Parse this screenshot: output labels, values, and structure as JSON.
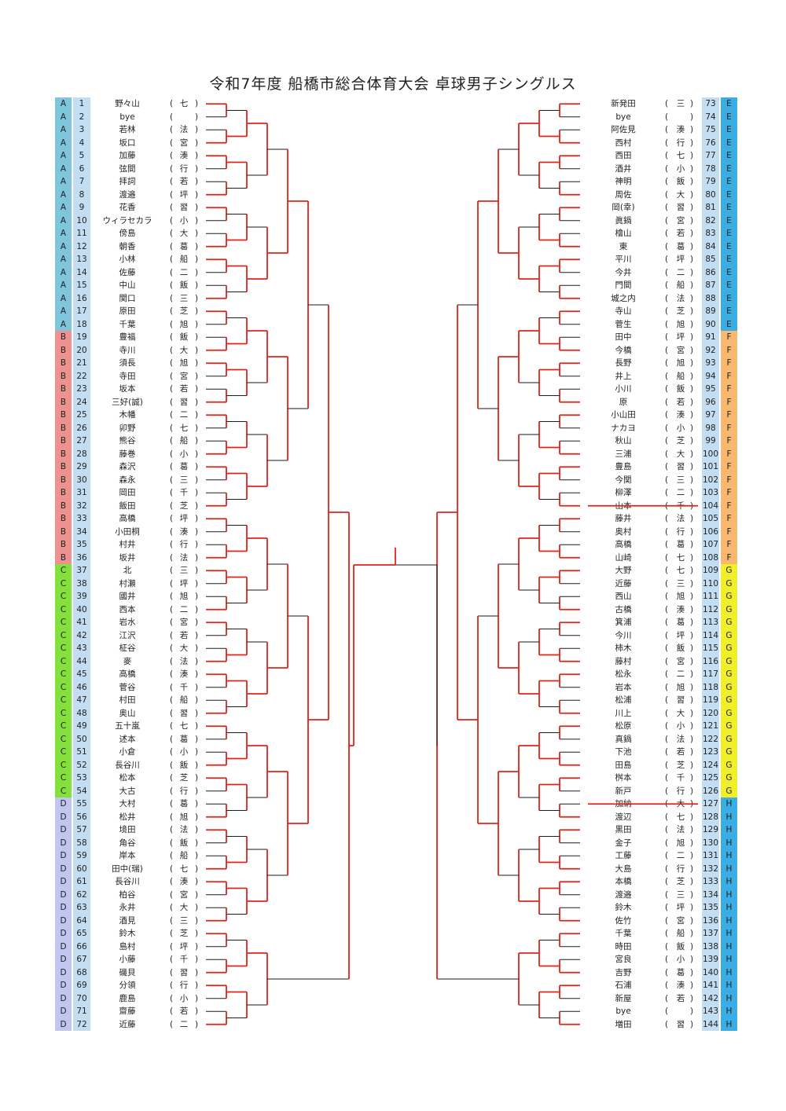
{
  "title": "令和7年度 船橋市総合体育大会 卓球男子シングルス",
  "block_colors": {
    "A": "#7fc6dc",
    "B": "#ee9191",
    "C": "#84e13c",
    "D": "#c1c5ef",
    "E": "#3aaee4",
    "F": "#f8b870",
    "G": "#f1f028",
    "H": "#3aaee4"
  },
  "colors": {
    "winner_line": "#e2231a",
    "bracket_line": "#1a1a1a",
    "number_bg": "#c3def2"
  },
  "left_players": [
    {
      "block": "A",
      "num": "1",
      "name": "野々山",
      "abbr": "七"
    },
    {
      "block": "A",
      "num": "2",
      "name": "bye",
      "abbr": ""
    },
    {
      "block": "A",
      "num": "3",
      "name": "若林",
      "abbr": "法"
    },
    {
      "block": "A",
      "num": "4",
      "name": "坂口",
      "abbr": "宮"
    },
    {
      "block": "A",
      "num": "5",
      "name": "加藤",
      "abbr": "湊"
    },
    {
      "block": "A",
      "num": "6",
      "name": "弦間",
      "abbr": "行"
    },
    {
      "block": "A",
      "num": "7",
      "name": "拝詞",
      "abbr": "若"
    },
    {
      "block": "A",
      "num": "8",
      "name": "渡邉",
      "abbr": "坪"
    },
    {
      "block": "A",
      "num": "9",
      "name": "花香",
      "abbr": "習"
    },
    {
      "block": "A",
      "num": "10",
      "name": "ウィラセカラ",
      "abbr": "小"
    },
    {
      "block": "A",
      "num": "11",
      "name": "傍島",
      "abbr": "大"
    },
    {
      "block": "A",
      "num": "12",
      "name": "朝香",
      "abbr": "葛"
    },
    {
      "block": "A",
      "num": "13",
      "name": "小林",
      "abbr": "船"
    },
    {
      "block": "A",
      "num": "14",
      "name": "佐藤",
      "abbr": "二"
    },
    {
      "block": "A",
      "num": "15",
      "name": "中山",
      "abbr": "飯"
    },
    {
      "block": "A",
      "num": "16",
      "name": "関口",
      "abbr": "三"
    },
    {
      "block": "A",
      "num": "17",
      "name": "原田",
      "abbr": "芝"
    },
    {
      "block": "A",
      "num": "18",
      "name": "千葉",
      "abbr": "旭"
    },
    {
      "block": "B",
      "num": "19",
      "name": "豊福",
      "abbr": "飯"
    },
    {
      "block": "B",
      "num": "20",
      "name": "寺川",
      "abbr": "大"
    },
    {
      "block": "B",
      "num": "21",
      "name": "須長",
      "abbr": "旭"
    },
    {
      "block": "B",
      "num": "22",
      "name": "寺田",
      "abbr": "宮"
    },
    {
      "block": "B",
      "num": "23",
      "name": "坂本",
      "abbr": "若"
    },
    {
      "block": "B",
      "num": "24",
      "name": "三好(誠)",
      "abbr": "習"
    },
    {
      "block": "B",
      "num": "25",
      "name": "木幡",
      "abbr": "二"
    },
    {
      "block": "B",
      "num": "26",
      "name": "卯野",
      "abbr": "七"
    },
    {
      "block": "B",
      "num": "27",
      "name": "熊谷",
      "abbr": "船"
    },
    {
      "block": "B",
      "num": "28",
      "name": "藤巻",
      "abbr": "小"
    },
    {
      "block": "B",
      "num": "29",
      "name": "森沢",
      "abbr": "葛"
    },
    {
      "block": "B",
      "num": "30",
      "name": "森永",
      "abbr": "三"
    },
    {
      "block": "B",
      "num": "31",
      "name": "岡田",
      "abbr": "千"
    },
    {
      "block": "B",
      "num": "32",
      "name": "飯田",
      "abbr": "芝"
    },
    {
      "block": "B",
      "num": "33",
      "name": "高橋",
      "abbr": "坪"
    },
    {
      "block": "B",
      "num": "34",
      "name": "小田桐",
      "abbr": "湊"
    },
    {
      "block": "B",
      "num": "35",
      "name": "村井",
      "abbr": "行"
    },
    {
      "block": "B",
      "num": "36",
      "name": "坂井",
      "abbr": "法"
    },
    {
      "block": "C",
      "num": "37",
      "name": "北",
      "abbr": "三"
    },
    {
      "block": "C",
      "num": "38",
      "name": "村瀬",
      "abbr": "坪"
    },
    {
      "block": "C",
      "num": "39",
      "name": "國井",
      "abbr": "旭"
    },
    {
      "block": "C",
      "num": "40",
      "name": "西本",
      "abbr": "二"
    },
    {
      "block": "C",
      "num": "41",
      "name": "岩水",
      "abbr": "宮"
    },
    {
      "block": "C",
      "num": "42",
      "name": "江沢",
      "abbr": "若"
    },
    {
      "block": "C",
      "num": "43",
      "name": "柾谷",
      "abbr": "大"
    },
    {
      "block": "C",
      "num": "44",
      "name": "麥",
      "abbr": "法"
    },
    {
      "block": "C",
      "num": "45",
      "name": "高橋",
      "abbr": "湊"
    },
    {
      "block": "C",
      "num": "46",
      "name": "菅谷",
      "abbr": "千"
    },
    {
      "block": "C",
      "num": "47",
      "name": "村田",
      "abbr": "船"
    },
    {
      "block": "C",
      "num": "48",
      "name": "奥山",
      "abbr": "習"
    },
    {
      "block": "C",
      "num": "49",
      "name": "五十嵐",
      "abbr": "七"
    },
    {
      "block": "C",
      "num": "50",
      "name": "述本",
      "abbr": "葛"
    },
    {
      "block": "C",
      "num": "51",
      "name": "小倉",
      "abbr": "小"
    },
    {
      "block": "C",
      "num": "52",
      "name": "長谷川",
      "abbr": "飯"
    },
    {
      "block": "C",
      "num": "53",
      "name": "松本",
      "abbr": "芝"
    },
    {
      "block": "C",
      "num": "54",
      "name": "大古",
      "abbr": "行"
    },
    {
      "block": "D",
      "num": "55",
      "name": "大村",
      "abbr": "葛"
    },
    {
      "block": "D",
      "num": "56",
      "name": "松井",
      "abbr": "旭"
    },
    {
      "block": "D",
      "num": "57",
      "name": "境田",
      "abbr": "法"
    },
    {
      "block": "D",
      "num": "58",
      "name": "角谷",
      "abbr": "飯"
    },
    {
      "block": "D",
      "num": "59",
      "name": "岸本",
      "abbr": "船"
    },
    {
      "block": "D",
      "num": "60",
      "name": "田中(瑞)",
      "abbr": "七"
    },
    {
      "block": "D",
      "num": "61",
      "name": "長谷川",
      "abbr": "湊"
    },
    {
      "block": "D",
      "num": "62",
      "name": "柏谷",
      "abbr": "宮"
    },
    {
      "block": "D",
      "num": "63",
      "name": "永井",
      "abbr": "大"
    },
    {
      "block": "D",
      "num": "64",
      "name": "酒見",
      "abbr": "三"
    },
    {
      "block": "D",
      "num": "65",
      "name": "鈴木",
      "abbr": "芝"
    },
    {
      "block": "D",
      "num": "66",
      "name": "島村",
      "abbr": "坪"
    },
    {
      "block": "D",
      "num": "67",
      "name": "小藤",
      "abbr": "千"
    },
    {
      "block": "D",
      "num": "68",
      "name": "磯貝",
      "abbr": "習"
    },
    {
      "block": "D",
      "num": "69",
      "name": "分領",
      "abbr": "行"
    },
    {
      "block": "D",
      "num": "70",
      "name": "鹿島",
      "abbr": "小"
    },
    {
      "block": "D",
      "num": "71",
      "name": "齋藤",
      "abbr": "若"
    },
    {
      "block": "D",
      "num": "72",
      "name": "近藤",
      "abbr": "二"
    }
  ],
  "right_players": [
    {
      "block": "E",
      "num": "73",
      "name": "新発田",
      "abbr": "三"
    },
    {
      "block": "E",
      "num": "74",
      "name": "bye",
      "abbr": ""
    },
    {
      "block": "E",
      "num": "75",
      "name": "阿佐見",
      "abbr": "湊"
    },
    {
      "block": "E",
      "num": "76",
      "name": "西村",
      "abbr": "行"
    },
    {
      "block": "E",
      "num": "77",
      "name": "西田",
      "abbr": "七"
    },
    {
      "block": "E",
      "num": "78",
      "name": "酒井",
      "abbr": "小"
    },
    {
      "block": "E",
      "num": "79",
      "name": "神明",
      "abbr": "飯"
    },
    {
      "block": "E",
      "num": "80",
      "name": "周佐",
      "abbr": "大"
    },
    {
      "block": "E",
      "num": "81",
      "name": "岡(幸)",
      "abbr": "習"
    },
    {
      "block": "E",
      "num": "82",
      "name": "眞鍋",
      "abbr": "宮"
    },
    {
      "block": "E",
      "num": "83",
      "name": "檜山",
      "abbr": "若"
    },
    {
      "block": "E",
      "num": "84",
      "name": "東",
      "abbr": "葛"
    },
    {
      "block": "E",
      "num": "85",
      "name": "平川",
      "abbr": "坪"
    },
    {
      "block": "E",
      "num": "86",
      "name": "今井",
      "abbr": "二"
    },
    {
      "block": "E",
      "num": "87",
      "name": "門間",
      "abbr": "船"
    },
    {
      "block": "E",
      "num": "88",
      "name": "城之内",
      "abbr": "法"
    },
    {
      "block": "E",
      "num": "89",
      "name": "寺山",
      "abbr": "芝"
    },
    {
      "block": "E",
      "num": "90",
      "name": "菅生",
      "abbr": "旭"
    },
    {
      "block": "F",
      "num": "91",
      "name": "田中",
      "abbr": "坪"
    },
    {
      "block": "F",
      "num": "92",
      "name": "今橋",
      "abbr": "宮"
    },
    {
      "block": "F",
      "num": "93",
      "name": "長野",
      "abbr": "旭"
    },
    {
      "block": "F",
      "num": "94",
      "name": "井上",
      "abbr": "船"
    },
    {
      "block": "F",
      "num": "95",
      "name": "小川",
      "abbr": "飯"
    },
    {
      "block": "F",
      "num": "96",
      "name": "原",
      "abbr": "若"
    },
    {
      "block": "F",
      "num": "97",
      "name": "小山田",
      "abbr": "湊"
    },
    {
      "block": "F",
      "num": "98",
      "name": "ナカヨ",
      "abbr": "小"
    },
    {
      "block": "F",
      "num": "99",
      "name": "秋山",
      "abbr": "芝"
    },
    {
      "block": "F",
      "num": "100",
      "name": "三浦",
      "abbr": "大"
    },
    {
      "block": "F",
      "num": "101",
      "name": "豊島",
      "abbr": "習"
    },
    {
      "block": "F",
      "num": "102",
      "name": "今関",
      "abbr": "三"
    },
    {
      "block": "F",
      "num": "103",
      "name": "柳澤",
      "abbr": "二"
    },
    {
      "block": "F",
      "num": "104",
      "name": "山本",
      "abbr": "千"
    },
    {
      "block": "F",
      "num": "105",
      "name": "藤井",
      "abbr": "法"
    },
    {
      "block": "F",
      "num": "106",
      "name": "奥村",
      "abbr": "行"
    },
    {
      "block": "F",
      "num": "107",
      "name": "高橋",
      "abbr": "葛"
    },
    {
      "block": "F",
      "num": "108",
      "name": "山崎",
      "abbr": "七"
    },
    {
      "block": "G",
      "num": "109",
      "name": "大野",
      "abbr": "七"
    },
    {
      "block": "G",
      "num": "110",
      "name": "近藤",
      "abbr": "三"
    },
    {
      "block": "G",
      "num": "111",
      "name": "西山",
      "abbr": "旭"
    },
    {
      "block": "G",
      "num": "112",
      "name": "古橋",
      "abbr": "湊"
    },
    {
      "block": "G",
      "num": "113",
      "name": "箕浦",
      "abbr": "葛"
    },
    {
      "block": "G",
      "num": "114",
      "name": "今川",
      "abbr": "坪"
    },
    {
      "block": "G",
      "num": "115",
      "name": "柿木",
      "abbr": "飯"
    },
    {
      "block": "G",
      "num": "116",
      "name": "藤村",
      "abbr": "宮"
    },
    {
      "block": "G",
      "num": "117",
      "name": "松永",
      "abbr": "二"
    },
    {
      "block": "G",
      "num": "118",
      "name": "岩本",
      "abbr": "旭"
    },
    {
      "block": "G",
      "num": "119",
      "name": "松浦",
      "abbr": "習"
    },
    {
      "block": "G",
      "num": "120",
      "name": "川上",
      "abbr": "大"
    },
    {
      "block": "G",
      "num": "121",
      "name": "松原",
      "abbr": "小"
    },
    {
      "block": "G",
      "num": "122",
      "name": "真鍋",
      "abbr": "法"
    },
    {
      "block": "G",
      "num": "123",
      "name": "下池",
      "abbr": "若"
    },
    {
      "block": "G",
      "num": "124",
      "name": "田島",
      "abbr": "芝"
    },
    {
      "block": "G",
      "num": "125",
      "name": "桝本",
      "abbr": "千"
    },
    {
      "block": "G",
      "num": "126",
      "name": "新戸",
      "abbr": "行"
    },
    {
      "block": "H",
      "num": "127",
      "name": "加納",
      "abbr": "大"
    },
    {
      "block": "H",
      "num": "128",
      "name": "渡辺",
      "abbr": "七"
    },
    {
      "block": "H",
      "num": "129",
      "name": "黒田",
      "abbr": "法"
    },
    {
      "block": "H",
      "num": "130",
      "name": "金子",
      "abbr": "旭"
    },
    {
      "block": "H",
      "num": "131",
      "name": "工藤",
      "abbr": "二"
    },
    {
      "block": "H",
      "num": "132",
      "name": "大島",
      "abbr": "行"
    },
    {
      "block": "H",
      "num": "133",
      "name": "本橋",
      "abbr": "芝"
    },
    {
      "block": "H",
      "num": "134",
      "name": "渡邉",
      "abbr": "三"
    },
    {
      "block": "H",
      "num": "135",
      "name": "鈴木",
      "abbr": "坪"
    },
    {
      "block": "H",
      "num": "136",
      "name": "佐竹",
      "abbr": "宮"
    },
    {
      "block": "H",
      "num": "137",
      "name": "千葉",
      "abbr": "船"
    },
    {
      "block": "H",
      "num": "138",
      "name": "時田",
      "abbr": "飯"
    },
    {
      "block": "H",
      "num": "139",
      "name": "宮良",
      "abbr": "小"
    },
    {
      "block": "H",
      "num": "140",
      "name": "吉野",
      "abbr": "葛"
    },
    {
      "block": "H",
      "num": "141",
      "name": "石浦",
      "abbr": "湊"
    },
    {
      "block": "H",
      "num": "142",
      "name": "新屋",
      "abbr": "若"
    },
    {
      "block": "H",
      "num": "143",
      "name": "bye",
      "abbr": ""
    },
    {
      "block": "H",
      "num": "144",
      "name": "増田",
      "abbr": "習"
    }
  ],
  "struck_through_numbers": [
    "104",
    "127"
  ]
}
